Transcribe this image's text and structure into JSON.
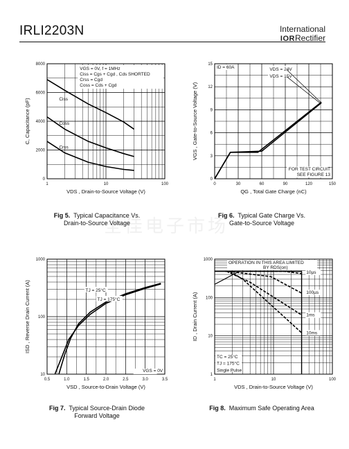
{
  "header": {
    "part_number": "IRLI2203N",
    "brand_line1": "International",
    "brand_ior": "IOR",
    "brand_line2": "Rectifier"
  },
  "watermark": "全佳电子市场",
  "figures": [
    {
      "caption_bold": "Fig 5.",
      "caption_rest": "Typical Capacitance Vs.",
      "caption_line2": "Drain-to-Source Voltage"
    },
    {
      "caption_bold": "Fig 6.",
      "caption_rest": "Typical Gate Charge Vs.",
      "caption_line2": "Gate-to-Source Voltage"
    },
    {
      "caption_bold": "Fig 7.",
      "caption_rest": "Typical Source-Drain Diode",
      "caption_line2": "Forward Voltage"
    },
    {
      "caption_bold": "Fig 8.",
      "caption_rest": "Maximum Safe Operating Area",
      "caption_line2": ""
    }
  ],
  "chart_data": [
    {
      "type": "line",
      "xscale": "log",
      "xlim": [
        1,
        100
      ],
      "ylim": [
        0,
        8000
      ],
      "xticks": [
        "1",
        "10",
        "100"
      ],
      "yticks": [
        "0",
        "2000",
        "4000",
        "6000",
        "8000"
      ],
      "xlabel": "VDS , Drain-to-Source Voltage (V)",
      "ylabel": "C, Capacitance (pF)",
      "conditions": [
        "VGS = 0V,      f = 1MHz",
        "Ciss = Cgs + Cgd , Cds SHORTED",
        "Crss = Cgd",
        "Coss = Cds + Cgd"
      ],
      "series": [
        {
          "name": "Ciss",
          "x": [
            1,
            2,
            5,
            10,
            20,
            30
          ],
          "y": [
            6900,
            6150,
            5200,
            4600,
            3950,
            3450
          ]
        },
        {
          "name": "Coss",
          "x": [
            1,
            2,
            5,
            10,
            20,
            30
          ],
          "y": [
            4300,
            3450,
            2600,
            2150,
            1750,
            1550
          ]
        },
        {
          "name": "Crss",
          "x": [
            1,
            2,
            5,
            10,
            20,
            30
          ],
          "y": [
            2600,
            1800,
            1150,
            850,
            650,
            580
          ]
        }
      ]
    },
    {
      "type": "line",
      "xlim": [
        0,
        150
      ],
      "ylim": [
        0,
        15
      ],
      "xticks": [
        "0",
        "30",
        "60",
        "90",
        "120",
        "150"
      ],
      "yticks": [
        "0",
        "3",
        "6",
        "9",
        "12",
        "15"
      ],
      "xlabel": "QG , Total Gate Charge (nC)",
      "ylabel": "VGS , Gate-to-Source Voltage (V)",
      "annotations": [
        "ID = 60A",
        "VDS = 24V",
        "VDS = 15V",
        "FOR TEST CIRCUIT",
        "SEE FIGURE 13"
      ],
      "series": [
        {
          "name": "VDS = 24V",
          "x": [
            0,
            20,
            60,
            136
          ],
          "y": [
            0,
            3.45,
            3.6,
            9.9
          ]
        },
        {
          "name": "VDS = 15V",
          "x": [
            0,
            20,
            55,
            136
          ],
          "y": [
            0,
            3.45,
            3.45,
            10
          ]
        }
      ],
      "leader_lines": [
        {
          "from": [
            92,
            14.2
          ],
          "to": [
            135,
            10
          ]
        },
        {
          "from": [
            92,
            13.3
          ],
          "to": [
            134,
            9.9
          ]
        }
      ]
    },
    {
      "type": "line",
      "yscale": "log",
      "xlim": [
        0.5,
        3.5
      ],
      "ylim": [
        10,
        1000
      ],
      "xticks": [
        "0.5",
        "1.0",
        "1.5",
        "2.0",
        "2.5",
        "3.0",
        "3.5"
      ],
      "yticks": [
        "10",
        "100",
        "1000"
      ],
      "xlabel": "VSD , Source-to-Drain Voltage (V)",
      "ylabel": "ISD , Reverse Drain Current (A)",
      "annotations": [
        "TJ = 25°C",
        "TJ = 175°C",
        "VGS = 0V"
      ],
      "series": [
        {
          "name": "TJ = 175°C",
          "x": [
            0.7,
            0.9,
            1.05,
            1.3,
            1.6,
            2.0,
            2.5,
            3.0,
            3.4
          ],
          "y": [
            10,
            22,
            40,
            70,
            110,
            170,
            240,
            310,
            370
          ]
        },
        {
          "name": "TJ = 25°C",
          "x": [
            0.8,
            0.95,
            1.1,
            1.3,
            1.6,
            2.0,
            2.5,
            3.0,
            3.4
          ],
          "y": [
            10,
            22,
            42,
            75,
            120,
            180,
            250,
            320,
            380
          ]
        }
      ]
    },
    {
      "type": "line",
      "xscale": "log",
      "yscale": "log",
      "xlim": [
        1,
        100
      ],
      "ylim": [
        1,
        1000
      ],
      "xticks": [
        "1",
        "10",
        "100"
      ],
      "yticks": [
        "1",
        "10",
        "100",
        "1000"
      ],
      "xlabel": "VDS , Drain-to-Source Voltage (V)",
      "ylabel": "ID , Drain Current (A)",
      "annotations": [
        "OPERATION IN THIS AREA LIMITED",
        "BY RDS(on)",
        "10µs",
        "100µs",
        "1ms",
        "10ms",
        "TC = 25°C",
        "TJ = 175°C",
        "Single Pulse"
      ],
      "series": [
        {
          "name": "10µs",
          "x": [
            1.5,
            15,
            30
          ],
          "y": [
            480,
            480,
            420
          ]
        },
        {
          "name": "100µs",
          "x": [
            1.7,
            9,
            30
          ],
          "y": [
            480,
            350,
            130
          ]
        },
        {
          "name": "1ms",
          "x": [
            1.6,
            4,
            30
          ],
          "y": [
            480,
            250,
            35
          ]
        },
        {
          "name": "10ms",
          "x": [
            1.8,
            3,
            30
          ],
          "y": [
            480,
            300,
            12
          ]
        }
      ],
      "limits": {
        "rds_on": {
          "x": [
            1,
            2.6
          ],
          "y": [
            220,
            480
          ]
        },
        "current_limit": 480,
        "voltage_limit": 30
      }
    }
  ]
}
